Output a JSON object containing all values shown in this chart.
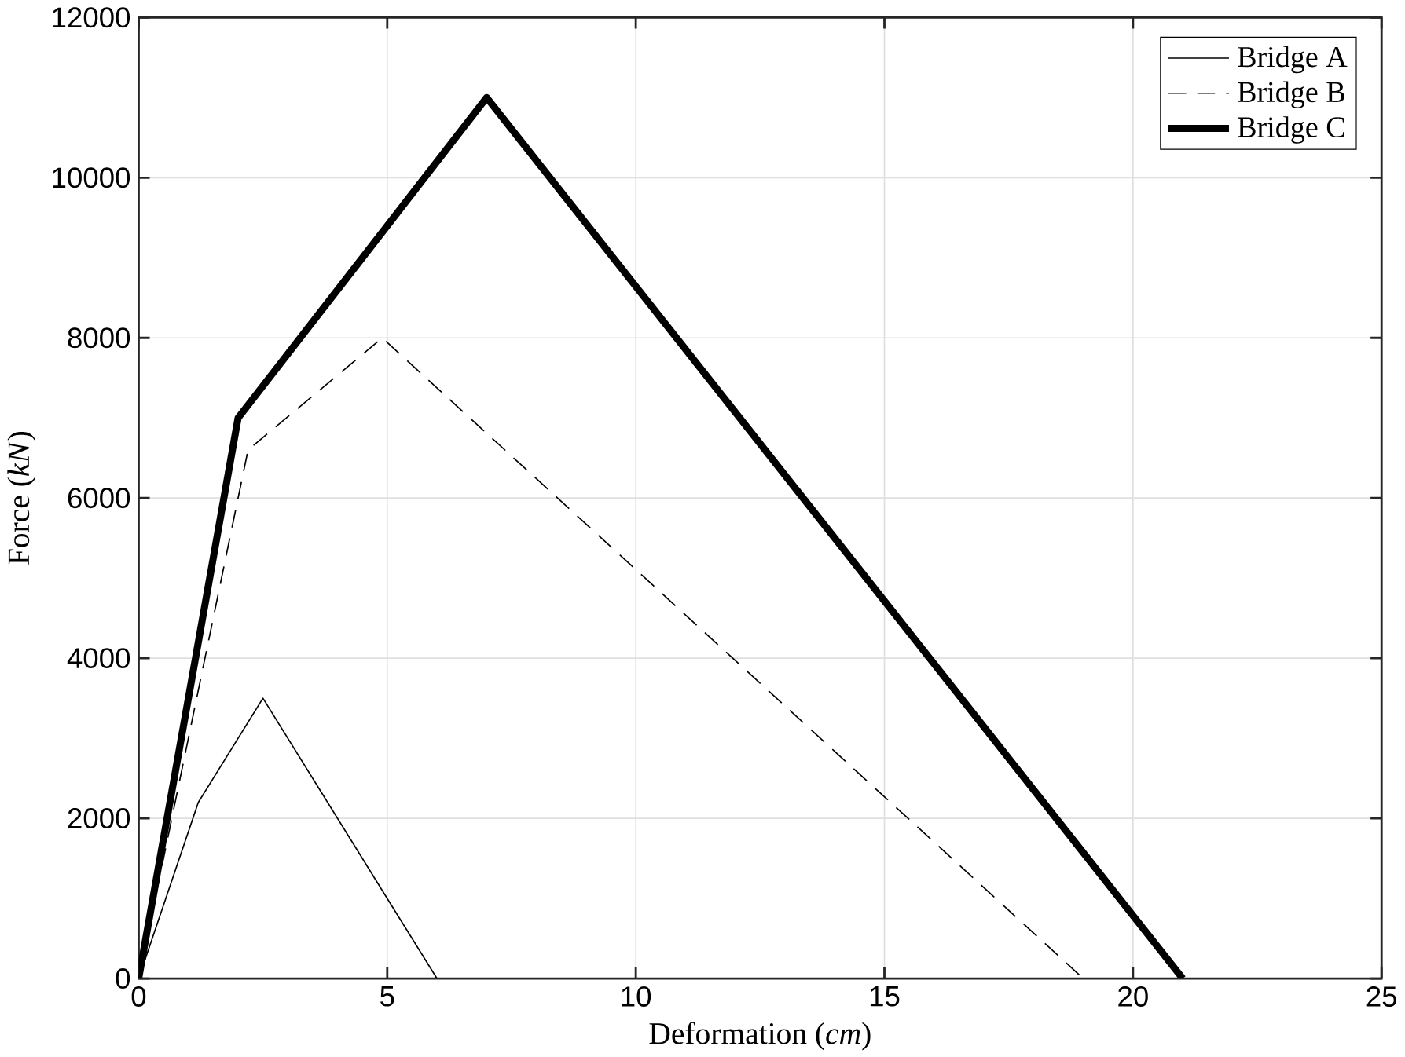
{
  "chart_data": {
    "type": "line",
    "xlabel": "Deformation (*cm*)",
    "ylabel": "Force (*kN*)",
    "xlim": [
      0,
      25
    ],
    "ylim": [
      0,
      12000
    ],
    "xticks": [
      0,
      5,
      10,
      15,
      20,
      25
    ],
    "yticks": [
      0,
      2000,
      4000,
      6000,
      8000,
      10000,
      12000
    ],
    "grid": true,
    "legend": "top right",
    "marker": "none",
    "series": [
      {
        "name": "Bridge A",
        "color": "#000000",
        "line_style": "solid",
        "x": [
          0,
          1.2,
          2.5,
          6
        ],
        "values": [
          0,
          2200,
          3500,
          0
        ]
      },
      {
        "name": "Bridge B",
        "color": "#000000",
        "line_style": "dashed",
        "x": [
          0,
          2.2,
          4.9,
          19
        ],
        "values": [
          0,
          6600,
          8000,
          0
        ]
      },
      {
        "name": "Bridge C",
        "color": "#000000",
        "line_style": "solid",
        "x": [
          0,
          2,
          7,
          21
        ],
        "values": [
          0,
          7000,
          11000,
          0
        ]
      }
    ]
  }
}
